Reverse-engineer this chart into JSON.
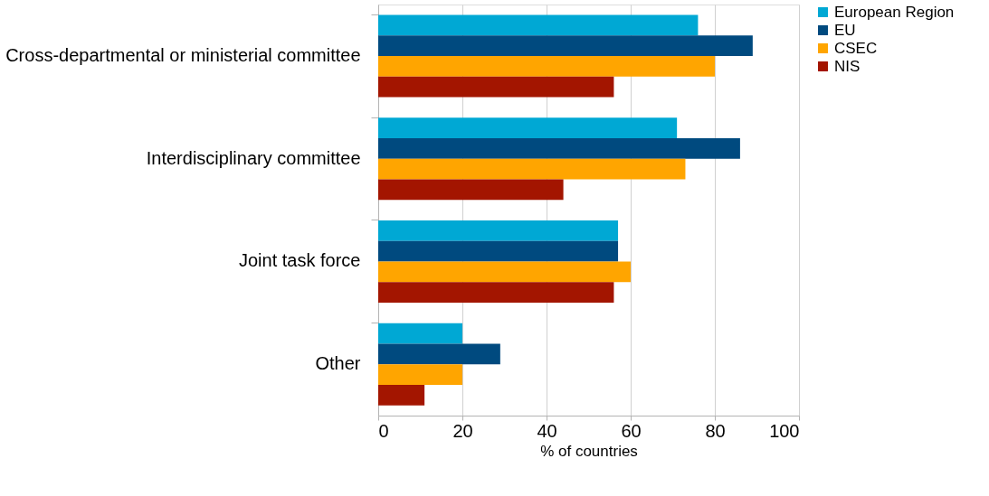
{
  "chart_data": {
    "type": "bar",
    "orientation": "horizontal",
    "categories": [
      "Cross-departmental or ministerial committee",
      "Interdisciplinary committee",
      "Joint task force",
      "Other"
    ],
    "series": [
      {
        "name": "European Region",
        "color": "#00a8d4",
        "values": [
          76,
          71,
          57,
          20
        ]
      },
      {
        "name": "EU",
        "color": "#004a7f",
        "values": [
          89,
          86,
          57,
          29
        ]
      },
      {
        "name": "CSEC",
        "color": "#ffa500",
        "values": [
          80,
          73,
          60,
          20
        ]
      },
      {
        "name": "NIS",
        "color": "#a31500",
        "values": [
          56,
          44,
          56,
          11
        ]
      }
    ],
    "xlabel": "% of countries",
    "xlim": [
      0,
      100
    ],
    "xticks": [
      0,
      20,
      40,
      60,
      80,
      100
    ],
    "grid": "x",
    "legend": "right"
  }
}
